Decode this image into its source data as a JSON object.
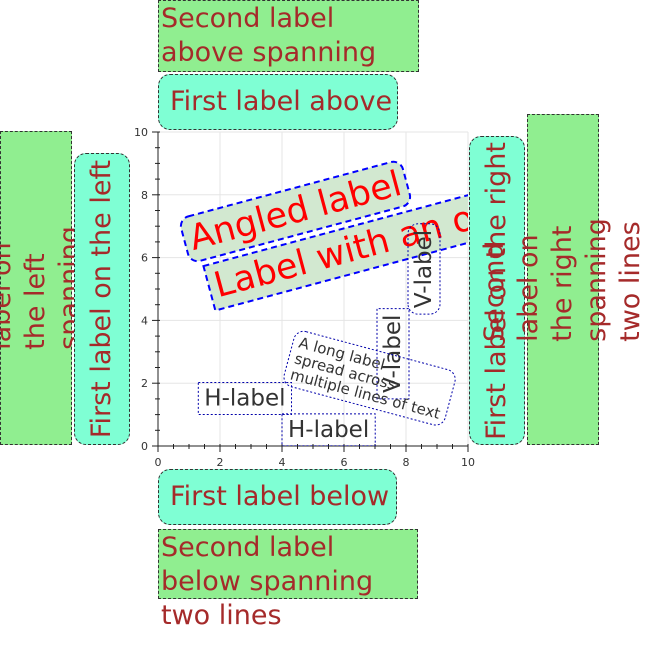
{
  "outer_labels": {
    "above_second": "Second label above spanning two lines",
    "above_first": "First label above",
    "below_first": "First label below",
    "below_second": "Second label below spanning two lines",
    "left_first": "First label on the left",
    "left_second": "Second label on the left spanning two lines",
    "right_first": "First label on the right",
    "right_second": "Second label on the right spanning two lines"
  },
  "colors": {
    "first_label_fill": "#7fffd4",
    "second_label_fill": "#90ee90",
    "outer_label_text": "#a52a2a",
    "angled_label_text": "#ff0000",
    "angled_label_border": "#0000ff",
    "angled_label_fill": "#d2e8d0",
    "inner_label_text": "#333333",
    "inner_label_border": "#0000aa"
  },
  "chart_data": {
    "type": "scatter",
    "title": "",
    "xlabel": "",
    "ylabel": "",
    "xlim": [
      0,
      10
    ],
    "ylim": [
      0,
      10
    ],
    "grid": true,
    "x_ticks": [
      "0",
      "2",
      "4",
      "6",
      "8",
      "10"
    ],
    "y_ticks": [
      "0",
      "2",
      "4",
      "6",
      "8",
      "10"
    ],
    "annotations": [
      {
        "text": "Angled label",
        "x": 1,
        "y": 6,
        "angle_deg": 15,
        "size": "large",
        "color": "#ff0000",
        "style": "box-rounded-dashed"
      },
      {
        "text": "Label with an offset",
        "x": 1.8,
        "y": 4.5,
        "angle_deg": 15,
        "size": "large",
        "color": "#ff0000",
        "style": "box-dashed"
      },
      {
        "text": "H-label",
        "x": 1.3,
        "y": 1.1,
        "angle_deg": 0,
        "size": "medium",
        "color": "#333333",
        "style": "box-dotted"
      },
      {
        "text": "H-label",
        "x": 4,
        "y": 0.1,
        "angle_deg": 0,
        "size": "medium",
        "color": "#333333",
        "style": "box-dotted"
      },
      {
        "text": "V-label",
        "x": 8,
        "y": 1.5,
        "angle_deg": 90,
        "size": "medium",
        "color": "#333333",
        "style": "box-dotted"
      },
      {
        "text": "V-label",
        "x": 9,
        "y": 4.2,
        "angle_deg": 90,
        "size": "medium",
        "color": "#333333",
        "style": "box-rounded-dotted"
      },
      {
        "lines": [
          "A long label",
          "spread across",
          "multiple lines of text"
        ],
        "x": 4,
        "y": 2,
        "angle_deg": -15,
        "size": "small",
        "color": "#333333",
        "style": "box-rounded-dotted"
      }
    ]
  }
}
